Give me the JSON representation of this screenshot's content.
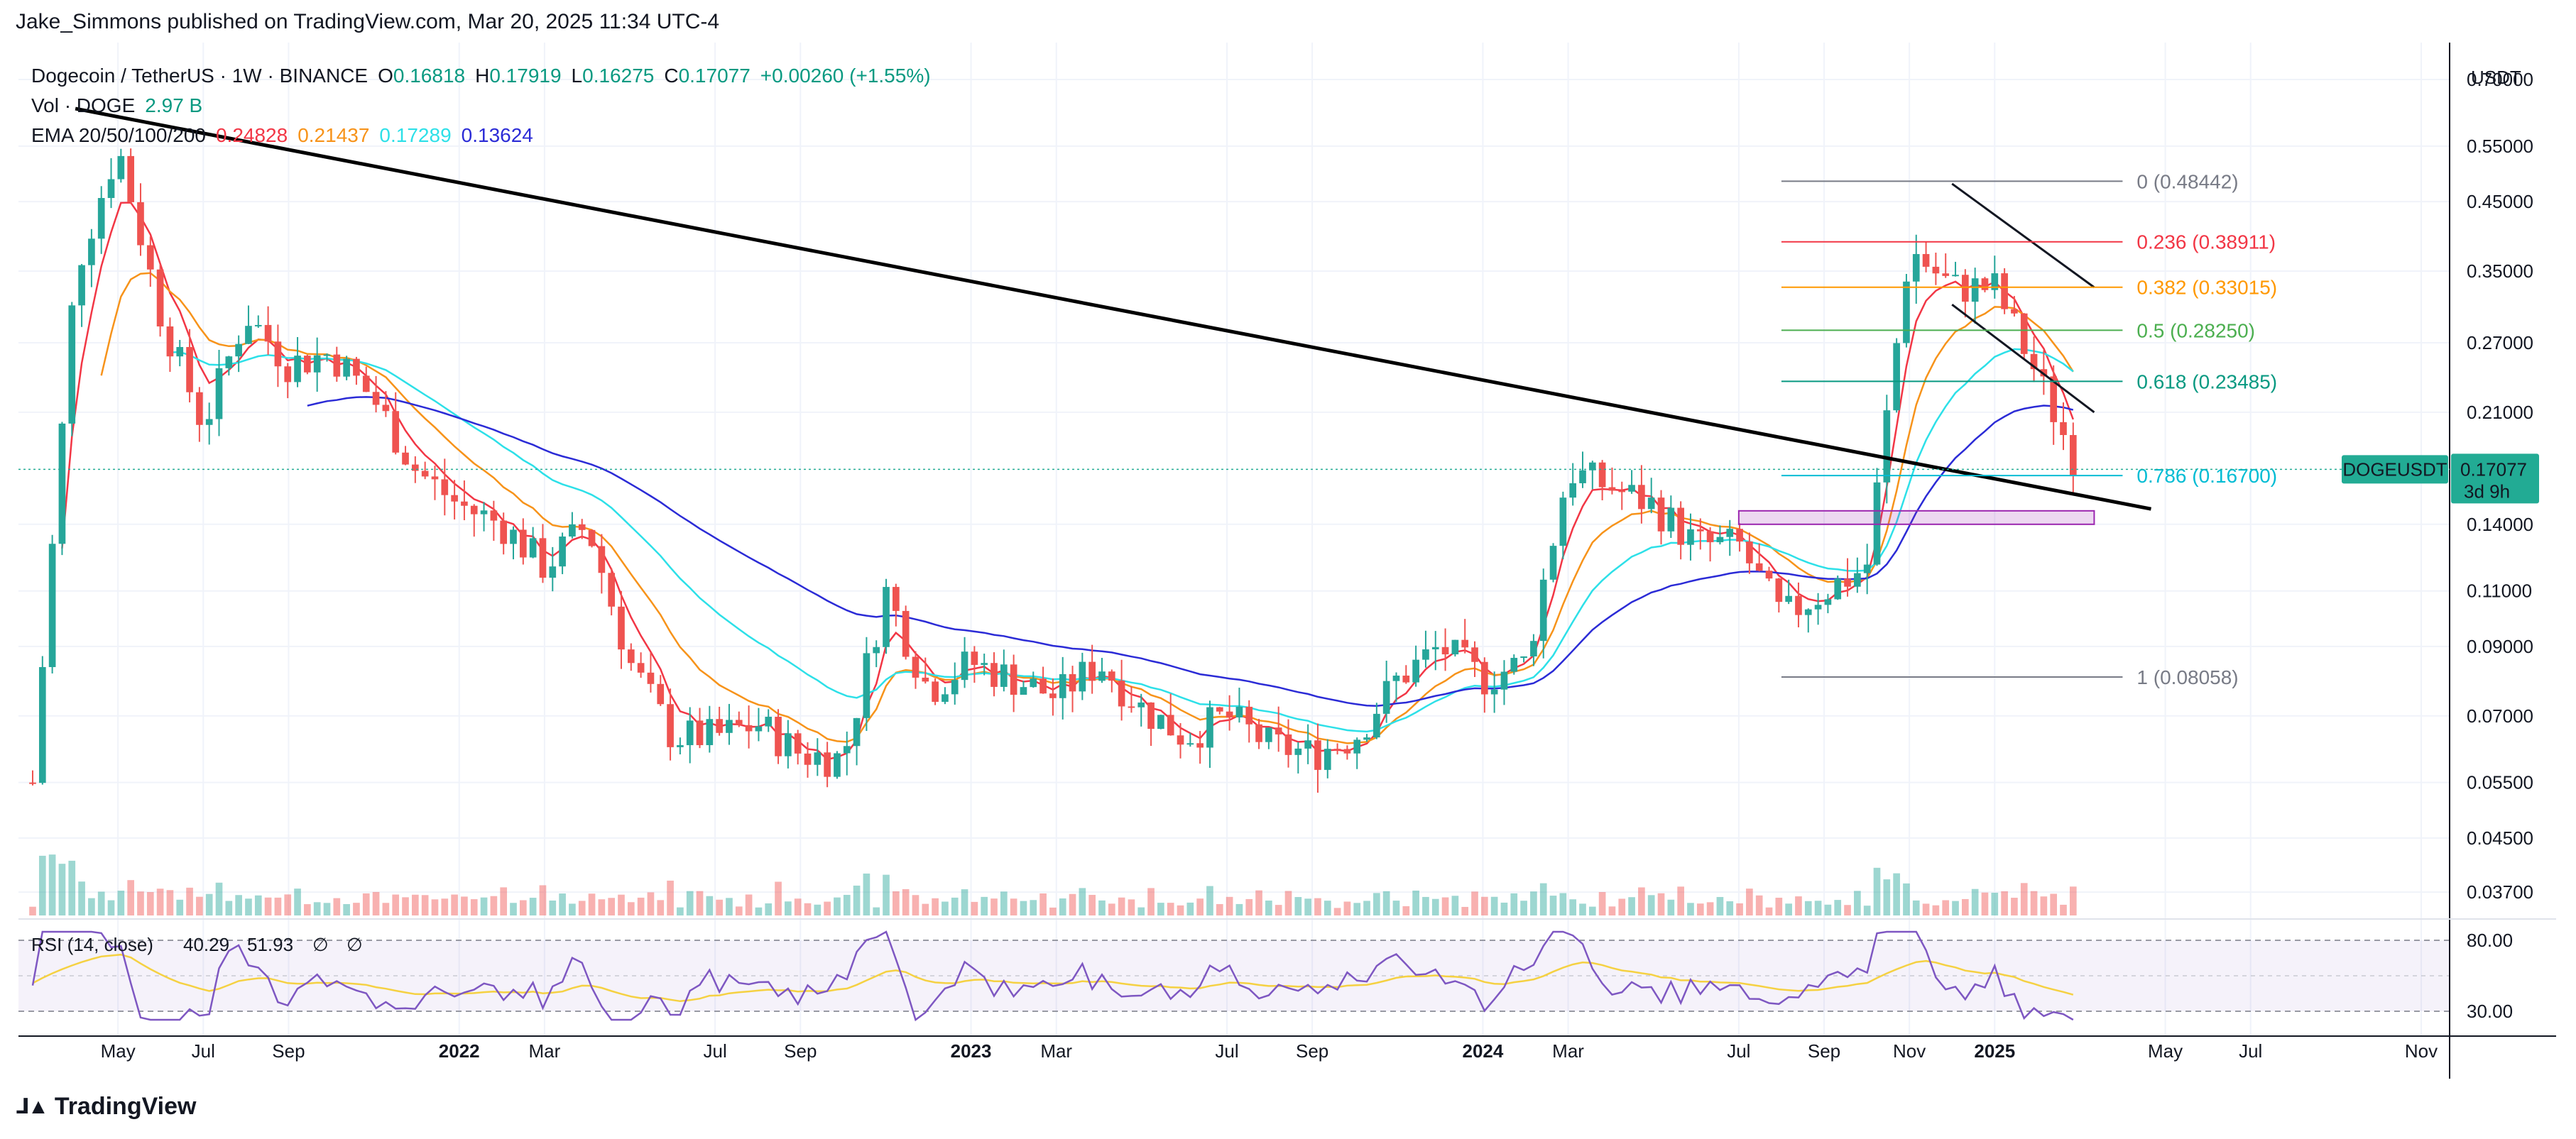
{
  "publisher": "Jake_Simmons published on TradingView.com, Mar 20, 2025 11:34 UTC-4",
  "symbol": {
    "name": "Dogecoin / TetherUS · 1W · BINANCE",
    "o_label": "O",
    "o": "0.16818",
    "h_label": "H",
    "h": "0.17919",
    "l_label": "L",
    "l": "0.16275",
    "c_label": "C",
    "c": "0.17077",
    "change": "+0.00260 (+1.55%)"
  },
  "volume": {
    "label": "Vol · DOGE",
    "value": "2.97 B"
  },
  "ema": {
    "label": "EMA 20/50/100/200",
    "values": [
      "0.24828",
      "0.21437",
      "0.17289",
      "0.13624"
    ],
    "colors": [
      "#f23645",
      "#f7931a",
      "#2de0e8",
      "#2b2bd6"
    ]
  },
  "price_axis": {
    "currency": "USDT",
    "ticks": [
      "0.70000",
      "0.55000",
      "0.45000",
      "0.35000",
      "0.27000",
      "0.21000",
      "0.14000",
      "0.11000",
      "0.09000",
      "0.07000",
      "0.05500",
      "0.04500",
      "0.03700"
    ],
    "tick_values": [
      0.7,
      0.55,
      0.45,
      0.35,
      0.27,
      0.21,
      0.14,
      0.11,
      0.09,
      0.07,
      0.055,
      0.045,
      0.037
    ],
    "scale": "log"
  },
  "price_tag": {
    "symbol": "DOGEUSDT",
    "price": "0.17077",
    "countdown": "3d 9h",
    "color": "#22ab94"
  },
  "time_axis": {
    "labels": [
      "May",
      "Jul",
      "Sep",
      "2022",
      "Mar",
      "Jul",
      "Sep",
      "2023",
      "Mar",
      "Jul",
      "Sep",
      "2024",
      "Mar",
      "Jul",
      "Sep",
      "Nov",
      "2025",
      "May",
      "Jul",
      "Nov"
    ],
    "bold": [
      false,
      false,
      false,
      true,
      false,
      false,
      false,
      true,
      false,
      false,
      false,
      true,
      false,
      false,
      false,
      false,
      true,
      false,
      false,
      false
    ]
  },
  "rsi": {
    "label": "RSI (14, close)",
    "value1": "40.29",
    "value2": "51.93",
    "extra1": "∅",
    "extra2": "∅",
    "ticks": [
      "80.00",
      "30.00"
    ],
    "tick_values": [
      80,
      30
    ]
  },
  "fibonacci": [
    {
      "label": "0 (0.48442)",
      "price": 0.48442,
      "color": "#787b86"
    },
    {
      "label": "0.236 (0.38911)",
      "price": 0.38911,
      "color": "#f23645"
    },
    {
      "label": "0.382 (0.33015)",
      "price": 0.33015,
      "color": "#ff9800"
    },
    {
      "label": "0.5 (0.28250)",
      "price": 0.2825,
      "color": "#4caf50"
    },
    {
      "label": "0.618 (0.23485)",
      "price": 0.23485,
      "color": "#089981"
    },
    {
      "label": "0.786 (0.16700)",
      "price": 0.167,
      "color": "#00bcd4"
    },
    {
      "label": "1 (0.08058)",
      "price": 0.08058,
      "color": "#787b86"
    }
  ],
  "footer": {
    "brand": "TradingView"
  },
  "colors": {
    "up": "#26a69a",
    "down": "#ef5350",
    "trendline": "#000000",
    "support_box": "#9c27b0"
  },
  "chart_data": {
    "type": "candlestick",
    "title": "Dogecoin / TetherUS · 1W · BINANCE",
    "y_scale": "log",
    "ylim": [
      0.034,
      0.8
    ],
    "x_range": [
      "2021-03",
      "2025-11"
    ],
    "series": [
      {
        "name": "EMA 20",
        "color": "#f23645"
      },
      {
        "name": "EMA 50",
        "color": "#f7931a"
      },
      {
        "name": "EMA 100",
        "color": "#2de0e8"
      },
      {
        "name": "EMA 200",
        "color": "#2b2bd6"
      }
    ],
    "keyframes": [
      {
        "t": "2021-03",
        "p": 0.055
      },
      {
        "t": "2021-04",
        "p": 0.35
      },
      {
        "t": "2021-05",
        "p": 0.55
      },
      {
        "t": "2021-06",
        "p": 0.3
      },
      {
        "t": "2021-07",
        "p": 0.2
      },
      {
        "t": "2021-08",
        "p": 0.3
      },
      {
        "t": "2021-09",
        "p": 0.25
      },
      {
        "t": "2021-10",
        "p": 0.26
      },
      {
        "t": "2021-11",
        "p": 0.22
      },
      {
        "t": "2021-12",
        "p": 0.17
      },
      {
        "t": "2022-01",
        "p": 0.15
      },
      {
        "t": "2022-02",
        "p": 0.14
      },
      {
        "t": "2022-03",
        "p": 0.12
      },
      {
        "t": "2022-04",
        "p": 0.14
      },
      {
        "t": "2022-05",
        "p": 0.085
      },
      {
        "t": "2022-06",
        "p": 0.065
      },
      {
        "t": "2022-07",
        "p": 0.065
      },
      {
        "t": "2022-08",
        "p": 0.068
      },
      {
        "t": "2022-09",
        "p": 0.061
      },
      {
        "t": "2022-10",
        "p": 0.06
      },
      {
        "t": "2022-11",
        "p": 0.11
      },
      {
        "t": "2022-12",
        "p": 0.077
      },
      {
        "t": "2023-01",
        "p": 0.085
      },
      {
        "t": "2023-02",
        "p": 0.08
      },
      {
        "t": "2023-03",
        "p": 0.075
      },
      {
        "t": "2023-04",
        "p": 0.085
      },
      {
        "t": "2023-05",
        "p": 0.072
      },
      {
        "t": "2023-06",
        "p": 0.065
      },
      {
        "t": "2023-07",
        "p": 0.07
      },
      {
        "t": "2023-08",
        "p": 0.063
      },
      {
        "t": "2023-09",
        "p": 0.061
      },
      {
        "t": "2023-10",
        "p": 0.065
      },
      {
        "t": "2023-11",
        "p": 0.08
      },
      {
        "t": "2023-12",
        "p": 0.09
      },
      {
        "t": "2024-01",
        "p": 0.08
      },
      {
        "t": "2024-02",
        "p": 0.085
      },
      {
        "t": "2024-03",
        "p": 0.17
      },
      {
        "t": "2024-04",
        "p": 0.16
      },
      {
        "t": "2024-05",
        "p": 0.15
      },
      {
        "t": "2024-06",
        "p": 0.13
      },
      {
        "t": "2024-07",
        "p": 0.13
      },
      {
        "t": "2024-08",
        "p": 0.1
      },
      {
        "t": "2024-09",
        "p": 0.11
      },
      {
        "t": "2024-10",
        "p": 0.12
      },
      {
        "t": "2024-11",
        "p": 0.38
      },
      {
        "t": "2024-12",
        "p": 0.33
      },
      {
        "t": "2025-01",
        "p": 0.33
      },
      {
        "t": "2025-02",
        "p": 0.24
      },
      {
        "t": "2025-03",
        "p": 0.17
      }
    ],
    "trendline": [
      {
        "t": "2021-05",
        "p": 0.63
      },
      {
        "t": "2025-04",
        "p": 0.148
      }
    ],
    "support_box": {
      "t_start": "2024-07",
      "t_end": "2025-03",
      "p_low": 0.14,
      "p_high": 0.147
    },
    "fib_range": {
      "t_start": "2024-08",
      "t_end": "2025-03"
    },
    "wedge": [
      {
        "from": {
          "t": "2024-12",
          "p": 0.48
        },
        "to": {
          "t": "2025-03",
          "p": 0.33
        }
      },
      {
        "from": {
          "t": "2024-12",
          "p": 0.31
        },
        "to": {
          "t": "2025-03",
          "p": 0.21
        }
      }
    ],
    "grid": true,
    "legend": "top-left"
  }
}
